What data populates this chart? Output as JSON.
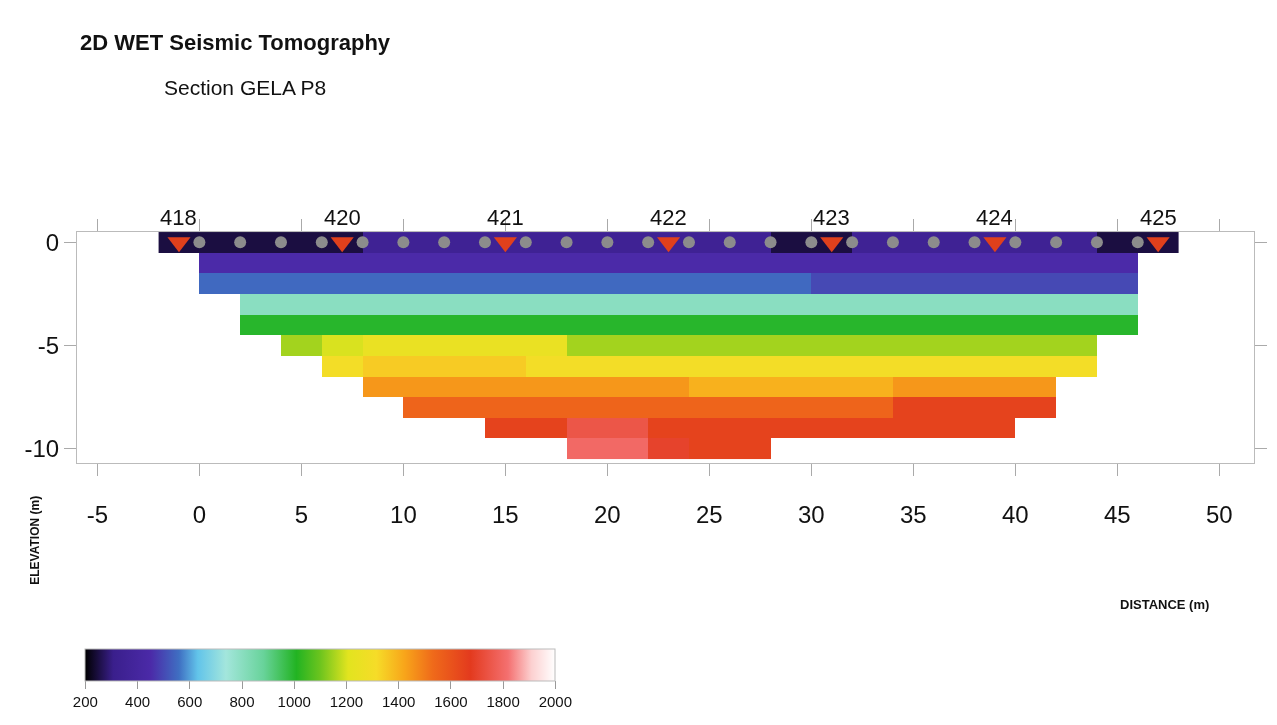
{
  "chart_data": {
    "type": "heatmap",
    "title": "2D WET Seismic Tomography",
    "subtitle": "Section GELA P8",
    "annotations": [
      "DISTANCE (m)",
      {
        "text": "418",
        "x": -1,
        "y": 0
      },
      {
        "text": "420",
        "x": 7,
        "y": 0
      },
      {
        "text": "421",
        "x": 15,
        "y": 0
      },
      {
        "text": "422",
        "x": 23,
        "y": 0
      },
      {
        "text": "423",
        "x": 31,
        "y": 0
      },
      {
        "text": "424",
        "x": 39,
        "y": 0
      },
      {
        "text": "425",
        "x": 47,
        "y": 0
      }
    ],
    "ylabel": "ELEVATION (m)",
    "x": [
      -1,
      1,
      3,
      5,
      7,
      9,
      11,
      13,
      15,
      17,
      19,
      21,
      23,
      25,
      27,
      29,
      31,
      33,
      35,
      37,
      39,
      41,
      43,
      45,
      47
    ],
    "y": [
      0,
      -1,
      -2,
      -3,
      -4,
      -5,
      -6,
      -7,
      -8,
      -9,
      -10
    ],
    "cells": [
      [
        250,
        250,
        250,
        250,
        250,
        350,
        350,
        350,
        350,
        350,
        350,
        350,
        350,
        350,
        350,
        250,
        250,
        350,
        350,
        350,
        350,
        350,
        350,
        250,
        250
      ],
      [
        null,
        450,
        450,
        450,
        450,
        450,
        450,
        450,
        450,
        450,
        450,
        450,
        450,
        450,
        450,
        450,
        450,
        450,
        450,
        450,
        450,
        450,
        450,
        450,
        null
      ],
      [
        null,
        550,
        550,
        550,
        550,
        550,
        550,
        550,
        550,
        550,
        550,
        550,
        550,
        550,
        550,
        550,
        500,
        500,
        500,
        500,
        500,
        500,
        500,
        500,
        null
      ],
      [
        null,
        null,
        800,
        800,
        800,
        800,
        800,
        800,
        800,
        800,
        800,
        800,
        800,
        800,
        800,
        800,
        800,
        800,
        800,
        800,
        800,
        800,
        800,
        800,
        null
      ],
      [
        null,
        null,
        1000,
        1000,
        1000,
        1000,
        1000,
        1000,
        1000,
        1000,
        1000,
        1000,
        1000,
        1000,
        1000,
        1000,
        1000,
        1000,
        1000,
        1000,
        1000,
        1000,
        1000,
        1000,
        null
      ],
      [
        null,
        null,
        null,
        1150,
        1200,
        1250,
        1250,
        1250,
        1250,
        1250,
        1150,
        1150,
        1150,
        1150,
        1150,
        1150,
        1150,
        1150,
        1150,
        1150,
        1150,
        1150,
        1150,
        null,
        null
      ],
      [
        null,
        null,
        null,
        null,
        1300,
        1350,
        1350,
        1350,
        1350,
        1300,
        1300,
        1300,
        1300,
        1300,
        1300,
        1300,
        1300,
        1300,
        1300,
        1300,
        1300,
        1300,
        1300,
        null,
        null
      ],
      [
        null,
        null,
        null,
        null,
        null,
        1450,
        1450,
        1450,
        1450,
        1450,
        1450,
        1450,
        1450,
        1400,
        1400,
        1400,
        1400,
        1400,
        1450,
        1450,
        1450,
        1450,
        null,
        null,
        null
      ],
      [
        null,
        null,
        null,
        null,
        null,
        null,
        1550,
        1550,
        1550,
        1550,
        1550,
        1550,
        1550,
        1550,
        1550,
        1550,
        1550,
        1550,
        1650,
        1650,
        1650,
        1650,
        null,
        null,
        null
      ],
      [
        null,
        null,
        null,
        null,
        null,
        null,
        null,
        null,
        1650,
        1650,
        1750,
        1750,
        1650,
        1650,
        1650,
        1650,
        1650,
        1650,
        1650,
        1650,
        1650,
        null,
        null,
        null,
        null
      ],
      [
        null,
        null,
        null,
        null,
        null,
        null,
        null,
        null,
        null,
        null,
        1800,
        1800,
        1700,
        1650,
        1650,
        null,
        null,
        null,
        null,
        null,
        null,
        null,
        null,
        null,
        null
      ]
    ],
    "clim": [
      200,
      2000
    ],
    "cticks": [
      200,
      400,
      600,
      800,
      1000,
      1200,
      1400,
      1600,
      1800,
      2000
    ],
    "series": [
      {
        "type": "scatter",
        "marker": "circle",
        "color": "#8c8c8c",
        "x": [
          0,
          2,
          4,
          6,
          8,
          10,
          12,
          14,
          16,
          18,
          20,
          22,
          24,
          26,
          28,
          30,
          32,
          34,
          36,
          38,
          40,
          42,
          44,
          46
        ],
        "values": [
          0,
          0,
          0,
          0,
          0,
          0,
          0,
          0,
          0,
          0,
          0,
          0,
          0,
          0,
          0,
          0,
          0,
          0,
          0,
          0,
          0,
          0,
          0,
          0
        ]
      },
      {
        "type": "scatter",
        "marker": "triangle",
        "color": "#e0401c",
        "x": [
          -1,
          7,
          15,
          23,
          31,
          39,
          47
        ],
        "values": [
          0,
          0,
          0,
          0,
          0,
          0,
          0
        ]
      }
    ],
    "xlim": [
      -6,
      51.7
    ],
    "xticks": [
      -5,
      0,
      5,
      10,
      15,
      20,
      25,
      30,
      35,
      40,
      45,
      50
    ],
    "ylim": [
      -10.7,
      0.5
    ],
    "yticks": [
      -10,
      -5,
      0
    ]
  }
}
